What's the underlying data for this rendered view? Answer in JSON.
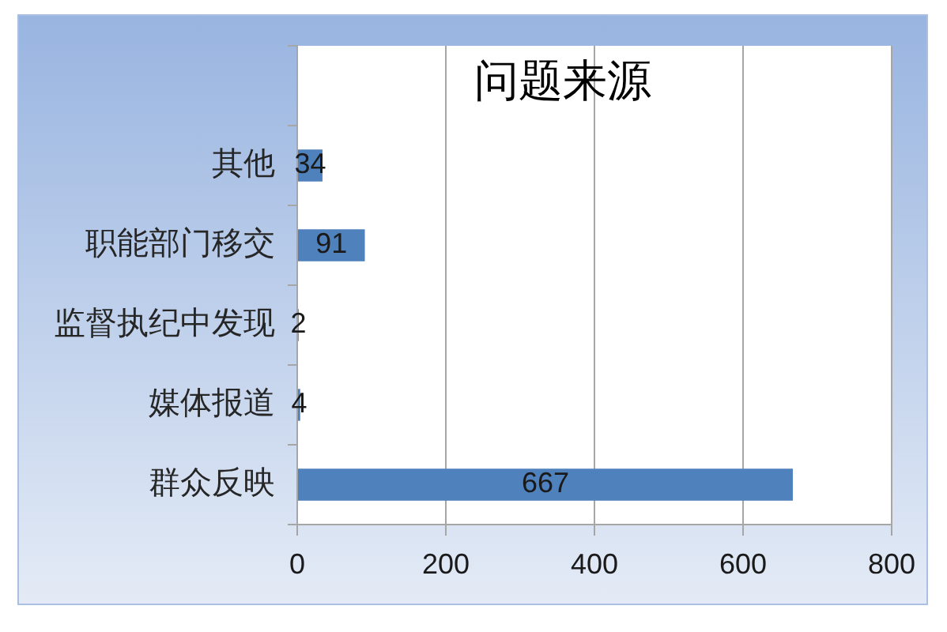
{
  "chart_data": {
    "type": "bar",
    "orientation": "horizontal",
    "title": "问题来源",
    "categories": [
      null,
      "其他",
      "职能部门移交",
      "监督执纪中发现",
      "媒体报道",
      "群众反映"
    ],
    "values": [
      null,
      34,
      91,
      2,
      4,
      667
    ],
    "color": "#4f81bd",
    "xlim": [
      0,
      800
    ],
    "xticks": [
      0,
      200,
      400,
      600,
      800
    ],
    "grid": "x",
    "data_labels": true
  }
}
